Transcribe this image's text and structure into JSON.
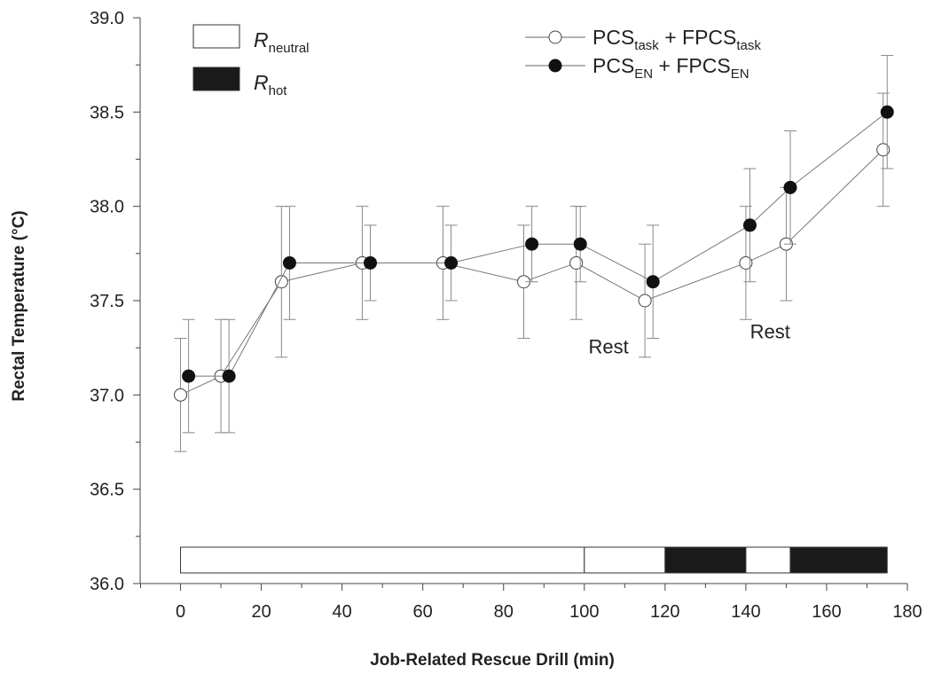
{
  "chart_data": {
    "type": "line",
    "xlabel": "Job-Related Rescue Drill (min)",
    "ylabel": "Rectal Temperature (°C)",
    "xlim": [
      -10,
      180
    ],
    "ylim": [
      36.0,
      39.0
    ],
    "x_ticks": [
      0,
      20,
      40,
      60,
      80,
      100,
      120,
      140,
      160,
      180
    ],
    "y_ticks": [
      "36.0",
      "36.5",
      "37.0",
      "37.5",
      "38.0",
      "38.5",
      "39.0"
    ],
    "grid": false,
    "series": [
      {
        "name_main": "PCS",
        "name_sub": "task",
        "name_main2": " + FPCS",
        "name_sub2": "task",
        "marker": "open-circle",
        "color": "#ffffff",
        "x": [
          0,
          10,
          25,
          45,
          65,
          85,
          98,
          115,
          140,
          150,
          174
        ],
        "values": [
          37.0,
          37.1,
          37.6,
          37.7,
          37.7,
          37.6,
          37.7,
          37.5,
          37.7,
          37.8,
          38.3
        ],
        "error": [
          0.3,
          0.3,
          0.4,
          0.3,
          0.3,
          0.3,
          0.3,
          0.3,
          0.3,
          0.3,
          0.3
        ]
      },
      {
        "name_main": "PCS",
        "name_sub": "EN",
        "name_main2": " + FPCS",
        "name_sub2": "EN",
        "marker": "filled-circle",
        "color": "#111111",
        "x": [
          2,
          12,
          27,
          47,
          67,
          87,
          99,
          117,
          141,
          151,
          175
        ],
        "values": [
          37.1,
          37.1,
          37.7,
          37.7,
          37.7,
          37.8,
          37.8,
          37.6,
          37.9,
          38.1,
          38.5
        ],
        "error": [
          0.3,
          0.3,
          0.3,
          0.2,
          0.2,
          0.2,
          0.2,
          0.3,
          0.3,
          0.3,
          0.3
        ]
      }
    ],
    "conditions_bar": {
      "segments": [
        {
          "start": 0,
          "end": 100,
          "condition": "neutral"
        },
        {
          "start": 100,
          "end": 120,
          "condition": "neutral"
        },
        {
          "start": 120,
          "end": 140,
          "condition": "hot"
        },
        {
          "start": 140,
          "end": 151,
          "condition": "neutral"
        },
        {
          "start": 151,
          "end": 175,
          "condition": "hot"
        }
      ],
      "colors": {
        "neutral": "#ffffff",
        "hot": "#1a1a1a"
      }
    },
    "legend_conditions": [
      {
        "key": "neutral",
        "label_main": "R",
        "label_sub": "neutral"
      },
      {
        "key": "hot",
        "label_main": "R",
        "label_sub": "hot"
      }
    ],
    "annotations": [
      {
        "text": "Rest",
        "x": 106,
        "y": 37.22
      },
      {
        "text": "Rest",
        "x": 146,
        "y": 37.3
      }
    ]
  }
}
